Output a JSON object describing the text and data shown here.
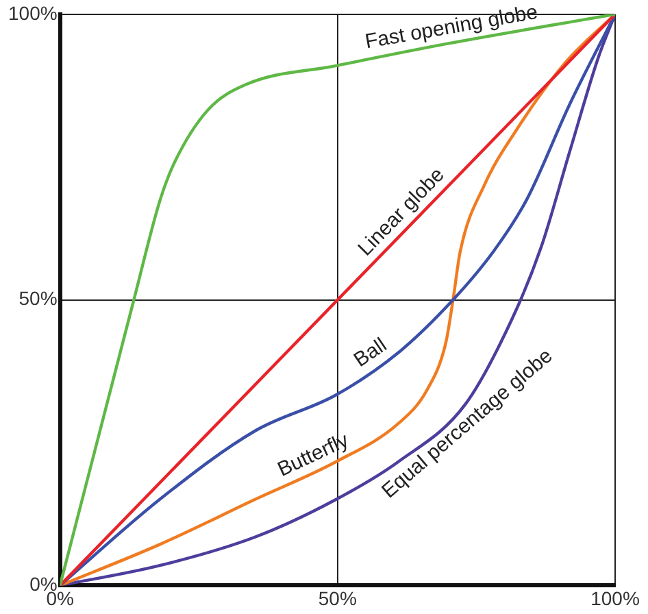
{
  "chart_data": {
    "type": "line",
    "xlim": [
      0,
      100
    ],
    "ylim": [
      0,
      100
    ],
    "xticks": [
      {
        "value": 0,
        "label": "0%"
      },
      {
        "value": 50,
        "label": "50%"
      },
      {
        "value": 100,
        "label": "100%"
      }
    ],
    "yticks": [
      {
        "value": 0,
        "label": "0%"
      },
      {
        "value": 50,
        "label": "50%"
      },
      {
        "value": 100,
        "label": "100%"
      }
    ],
    "grid": true,
    "legend": false,
    "marker": "none",
    "line_style": "solid",
    "series": [
      {
        "name": "Fast opening globe",
        "color": "#5fb846",
        "x": [
          0,
          13.3,
          18,
          20.6,
          26.6,
          33.5,
          49.8,
          69.5,
          100
        ],
        "values": [
          0,
          50,
          67.4,
          74,
          83.2,
          87.7,
          91,
          94.8,
          100
        ]
      },
      {
        "name": "Linear globe",
        "color": "#e8242a",
        "x": [
          0,
          100
        ],
        "values": [
          0,
          100
        ]
      },
      {
        "name": "Ball",
        "color": "#3a4fa8",
        "x": [
          0,
          18,
          35.2,
          49.8,
          61,
          70.8,
          78.1,
          84.1,
          91.8,
          100
        ],
        "values": [
          0,
          15.1,
          27.1,
          33.4,
          40.8,
          50,
          58.5,
          67.6,
          84.2,
          100
        ]
      },
      {
        "name": "Butterfly",
        "color": "#f07c22",
        "x": [
          0,
          18,
          35.2,
          49.8,
          61,
          66.1,
          69.5,
          70.8,
          72.1,
          76.4,
          82.4,
          91,
          100
        ],
        "values": [
          0,
          7.2,
          15.1,
          21.7,
          28.4,
          34.2,
          42.5,
          50,
          58.5,
          70,
          80,
          91.5,
          100
        ]
      },
      {
        "name": "Equal percentage globe",
        "color": "#4e3d9c",
        "x": [
          0,
          18,
          35.2,
          49.8,
          61,
          73,
          81.5,
          86.7,
          91.8,
          97,
          100
        ],
        "values": [
          0,
          3.5,
          8.5,
          15.1,
          21.7,
          31.7,
          46.8,
          59.3,
          75.9,
          92.5,
          100
        ]
      }
    ]
  }
}
